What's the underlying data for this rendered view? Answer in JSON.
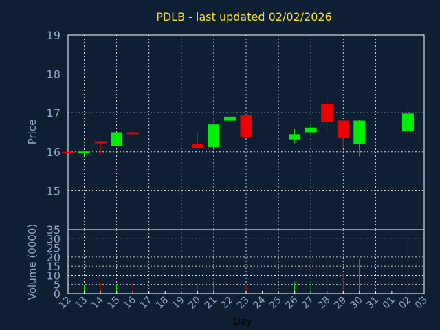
{
  "chart_data": {
    "type": "candlestick",
    "title": "PDLB - last updated 02/02/2026",
    "xlabel": "Day",
    "ylabel": "Price",
    "volume_label": "Volume (0000)",
    "x_ticks": [
      "12",
      "13",
      "14",
      "15",
      "16",
      "17",
      "18",
      "19",
      "20",
      "21",
      "22",
      "23",
      "24",
      "25",
      "26",
      "27",
      "28",
      "29",
      "30",
      "31",
      "01",
      "02",
      "03"
    ],
    "price_ylim": [
      14.0,
      19.0
    ],
    "price_ticks": [
      "15",
      "16",
      "17",
      "18",
      "19"
    ],
    "volume_ylim": [
      0,
      35
    ],
    "volume_ticks": [
      "0",
      "5",
      "10",
      "15",
      "20",
      "25",
      "30",
      "35"
    ],
    "grid": true,
    "colors": {
      "up": "#00ee00",
      "down": "#ee0000",
      "title": "#f0e030",
      "axis": "#8ea6c8",
      "background": "#0f1f33",
      "grid": "#ffffff"
    },
    "candles": [
      {
        "day": "12",
        "open": 16.0,
        "high": 16.0,
        "low": 15.98,
        "close": 15.98,
        "volume": 0.5
      },
      {
        "day": "13",
        "open": 15.97,
        "high": 16.03,
        "low": 15.9,
        "close": 16.01,
        "volume": 4.5
      },
      {
        "day": "14",
        "open": 16.27,
        "high": 16.27,
        "low": 15.92,
        "close": 16.22,
        "volume": 6.5
      },
      {
        "day": "15",
        "open": 16.15,
        "high": 16.5,
        "low": 16.15,
        "close": 16.5,
        "volume": 5.0
      },
      {
        "day": "16",
        "open": 16.5,
        "high": 16.55,
        "low": 16.35,
        "close": 16.45,
        "volume": 5.5
      },
      {
        "day": "20",
        "open": 16.2,
        "high": 16.5,
        "low": 16.1,
        "close": 16.1,
        "volume": 5.5
      },
      {
        "day": "21",
        "open": 16.12,
        "high": 16.7,
        "low": 16.1,
        "close": 16.7,
        "volume": 7.0
      },
      {
        "day": "22",
        "open": 16.8,
        "high": 17.05,
        "low": 16.78,
        "close": 16.9,
        "volume": 4.5
      },
      {
        "day": "23",
        "open": 16.93,
        "high": 16.95,
        "low": 16.38,
        "close": 16.38,
        "volume": 5.0
      },
      {
        "day": "26",
        "open": 16.32,
        "high": 16.6,
        "low": 16.22,
        "close": 16.45,
        "volume": 6.5
      },
      {
        "day": "27",
        "open": 16.5,
        "high": 16.65,
        "low": 16.45,
        "close": 16.62,
        "volume": 7.0
      },
      {
        "day": "28",
        "open": 17.22,
        "high": 17.5,
        "low": 16.5,
        "close": 16.77,
        "volume": 18.0
      },
      {
        "day": "29",
        "open": 16.8,
        "high": 16.8,
        "low": 16.1,
        "close": 16.35,
        "volume": 11.0
      },
      {
        "day": "30",
        "open": 16.2,
        "high": 16.82,
        "low": 15.88,
        "close": 16.8,
        "volume": 19.0
      },
      {
        "day": "02",
        "open": 16.53,
        "high": 17.3,
        "low": 16.28,
        "close": 16.98,
        "volume": 34.5
      }
    ]
  }
}
